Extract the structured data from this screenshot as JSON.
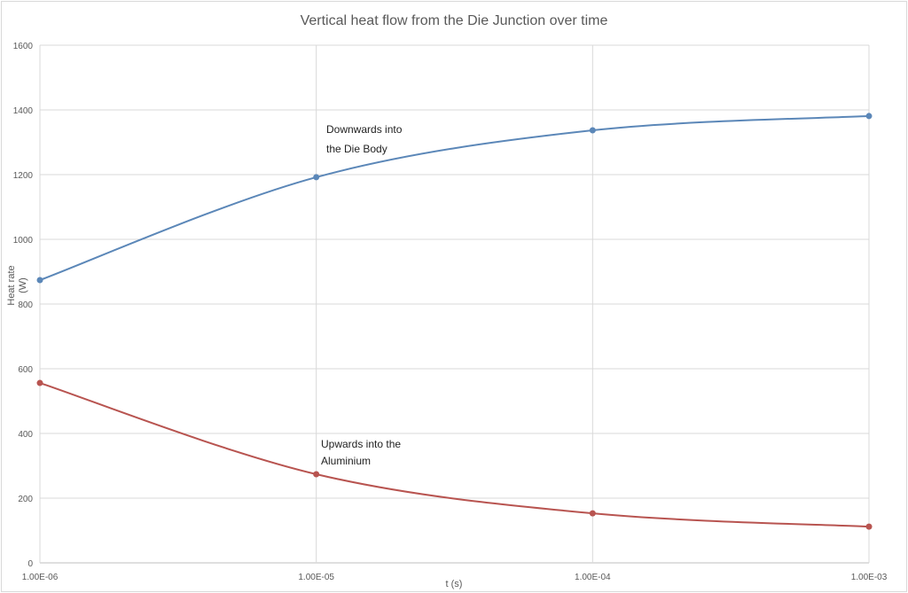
{
  "chart_data": {
    "type": "line",
    "title": "Vertical heat flow from the Die Junction over time",
    "xlabel": "t (s)",
    "ylabel_lines": [
      "Heat rate",
      "(W)"
    ],
    "x_scale": "log",
    "x": [
      1e-06,
      1e-05,
      0.0001,
      0.001
    ],
    "x_tick_labels": [
      "1.00E-06",
      "1.00E-05",
      "1.00E-04",
      "1.00E-03"
    ],
    "ylim": [
      0,
      1600
    ],
    "y_ticks": [
      0,
      200,
      400,
      600,
      800,
      1000,
      1200,
      1400,
      1600
    ],
    "grid": true,
    "series": [
      {
        "name": "Downwards into the Die Body",
        "color": "#5b87b8",
        "values": [
          874,
          1192,
          1337,
          1381
        ],
        "annotation": [
          "Downwards into",
          "the Die Body"
        ]
      },
      {
        "name": "Upwards into the Aluminium",
        "color": "#b85450",
        "values": [
          556,
          274,
          153,
          112
        ],
        "annotation": [
          "Upwards into the",
          "Aluminium"
        ]
      }
    ]
  }
}
